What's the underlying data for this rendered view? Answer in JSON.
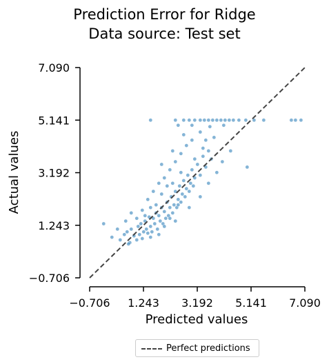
{
  "chart_data": {
    "type": "scatter",
    "title": "Prediction Error for Ridge",
    "subtitle": "Data source: Test set",
    "xlabel": "Predicted values",
    "ylabel": "Actual values",
    "xlim": [
      -0.706,
      7.09
    ],
    "ylim": [
      -0.706,
      7.09
    ],
    "xticks": [
      "−0.706",
      "1.243",
      "3.192",
      "5.141",
      "7.090"
    ],
    "yticks": [
      "−0.706",
      "1.243",
      "3.192",
      "5.141",
      "7.090"
    ],
    "tick_values": [
      -0.706,
      1.243,
      3.192,
      5.141,
      7.09
    ],
    "grid": false,
    "legend_position": "bottom-center",
    "legend": [
      "Perfect predictions"
    ],
    "colors": {
      "points": "#1f77b4",
      "reference_line": "#444444"
    },
    "reference_line": {
      "name": "Perfect predictions",
      "from": [
        -0.706,
        -0.706
      ],
      "to": [
        7.09,
        7.09
      ]
    },
    "points": [
      [
        0.55,
        0.9
      ],
      [
        0.65,
        1.0
      ],
      [
        0.75,
        0.6
      ],
      [
        0.8,
        1.1
      ],
      [
        0.9,
        0.85
      ],
      [
        1.0,
        0.7
      ],
      [
        1.05,
        1.2
      ],
      [
        1.1,
        0.9
      ],
      [
        1.15,
        1.3
      ],
      [
        1.2,
        0.75
      ],
      [
        1.25,
        1.0
      ],
      [
        1.3,
        1.4
      ],
      [
        1.35,
        1.1
      ],
      [
        1.4,
        0.95
      ],
      [
        1.45,
        1.55
      ],
      [
        1.5,
        1.2
      ],
      [
        1.55,
        1.0
      ],
      [
        1.6,
        1.5
      ],
      [
        1.65,
        1.3
      ],
      [
        1.7,
        1.7
      ],
      [
        1.75,
        1.1
      ],
      [
        1.8,
        1.6
      ],
      [
        1.85,
        1.4
      ],
      [
        1.9,
        1.9
      ],
      [
        1.95,
        1.3
      ],
      [
        2.0,
        1.75
      ],
      [
        2.05,
        1.5
      ],
      [
        2.1,
        2.1
      ],
      [
        2.15,
        1.6
      ],
      [
        2.2,
        1.9
      ],
      [
        2.25,
        2.3
      ],
      [
        2.3,
        1.7
      ],
      [
        2.35,
        2.0
      ],
      [
        2.4,
        2.5
      ],
      [
        2.45,
        1.9
      ],
      [
        2.5,
        2.2
      ],
      [
        2.55,
        2.7
      ],
      [
        2.6,
        2.1
      ],
      [
        2.65,
        2.4
      ],
      [
        2.7,
        2.9
      ],
      [
        2.75,
        2.3
      ],
      [
        2.8,
        2.6
      ],
      [
        2.85,
        3.1
      ],
      [
        2.9,
        2.5
      ],
      [
        2.95,
        2.8
      ],
      [
        3.0,
        3.3
      ],
      [
        3.05,
        2.7
      ],
      [
        3.1,
        3.0
      ],
      [
        3.2,
        3.5
      ],
      [
        3.3,
        3.1
      ],
      [
        3.4,
        3.8
      ],
      [
        3.5,
        3.4
      ],
      [
        3.6,
        4.0
      ],
      [
        3.7,
        3.7
      ],
      [
        1.2,
        1.8
      ],
      [
        1.4,
        2.2
      ],
      [
        1.6,
        2.5
      ],
      [
        1.8,
        2.8
      ],
      [
        2.0,
        3.0
      ],
      [
        2.2,
        3.3
      ],
      [
        2.4,
        3.6
      ],
      [
        2.6,
        3.9
      ],
      [
        2.8,
        4.2
      ],
      [
        3.0,
        4.4
      ],
      [
        2.3,
        4.0
      ],
      [
        1.9,
        3.5
      ],
      [
        2.7,
        4.6
      ],
      [
        3.3,
        4.7
      ],
      [
        2.1,
        2.7
      ],
      [
        1.7,
        2.0
      ],
      [
        1.5,
        1.9
      ],
      [
        1.3,
        1.6
      ],
      [
        1.0,
        1.5
      ],
      [
        0.8,
        1.7
      ],
      [
        0.6,
        1.4
      ],
      [
        0.3,
        1.1
      ],
      [
        0.1,
        0.8
      ],
      [
        -0.2,
        1.3
      ],
      [
        0.4,
        0.7
      ],
      [
        0.7,
        0.55
      ],
      [
        2.4,
        1.4
      ],
      [
        2.9,
        1.9
      ],
      [
        3.3,
        2.3
      ],
      [
        3.6,
        2.8
      ],
      [
        3.9,
        3.2
      ],
      [
        4.1,
        3.6
      ],
      [
        4.4,
        4.0
      ],
      [
        5.0,
        3.4
      ],
      [
        3.5,
        4.4
      ],
      [
        3.8,
        4.5
      ],
      [
        2.5,
        2.0
      ],
      [
        2.2,
        1.5
      ],
      [
        2.0,
        1.2
      ],
      [
        1.8,
        0.9
      ],
      [
        1.5,
        0.8
      ],
      [
        1.9,
        2.4
      ],
      [
        2.3,
        2.8
      ],
      [
        2.6,
        3.2
      ],
      [
        3.1,
        3.7
      ],
      [
        3.4,
        4.1
      ],
      [
        1.5,
        5.141
      ],
      [
        2.4,
        5.141
      ],
      [
        2.7,
        5.141
      ],
      [
        2.9,
        5.141
      ],
      [
        3.1,
        5.141
      ],
      [
        3.3,
        5.141
      ],
      [
        3.45,
        5.141
      ],
      [
        3.6,
        5.141
      ],
      [
        3.75,
        5.141
      ],
      [
        3.9,
        5.141
      ],
      [
        4.05,
        5.141
      ],
      [
        4.2,
        5.141
      ],
      [
        4.35,
        5.141
      ],
      [
        4.5,
        5.141
      ],
      [
        4.7,
        5.141
      ],
      [
        4.95,
        5.141
      ],
      [
        5.25,
        5.141
      ],
      [
        5.6,
        5.141
      ],
      [
        6.6,
        5.141
      ],
      [
        6.75,
        5.141
      ],
      [
        6.95,
        5.141
      ],
      [
        3.65,
        4.9
      ],
      [
        4.15,
        4.95
      ],
      [
        2.5,
        4.95
      ],
      [
        3.0,
        4.95
      ]
    ]
  }
}
